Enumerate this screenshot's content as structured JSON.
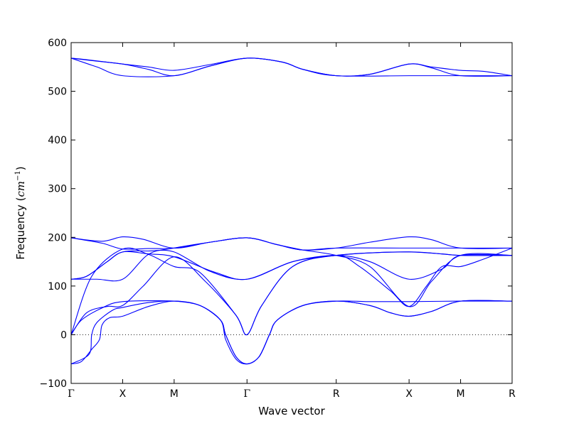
{
  "chart_data": {
    "type": "line",
    "xlabel": "Wave vector",
    "ylabel": "Frequency",
    "ylabel_unit_base": "cm",
    "ylabel_unit_exp": "−1",
    "ylim": [
      -100,
      600
    ],
    "yticks": [
      -100,
      0,
      100,
      200,
      300,
      400,
      500,
      600
    ],
    "ytick_labels": [
      "−100",
      "0",
      "100",
      "200",
      "300",
      "400",
      "500",
      "600"
    ],
    "xlim": [
      0,
      8.5
    ],
    "xticks": [
      {
        "pos": 0,
        "label": "Γ"
      },
      {
        "pos": 1,
        "label": "X"
      },
      {
        "pos": 2,
        "label": "M"
      },
      {
        "pos": 3.41421,
        "label": "Γ"
      },
      {
        "pos": 5.14626,
        "label": "R"
      },
      {
        "pos": 6.56047,
        "label": "X"
      },
      {
        "pos": 7.56047,
        "label": "M"
      },
      {
        "pos": 8.56047,
        "label": "R"
      }
    ],
    "zero_line": true,
    "grid": false,
    "line_color": "#0000ff",
    "zero_line_color": "#000000",
    "series": [
      {
        "points": [
          [
            0,
            568
          ],
          [
            0.3,
            565
          ],
          [
            1,
            556
          ],
          [
            1.5,
            550
          ],
          [
            2,
            543
          ],
          [
            2.7,
            555
          ],
          [
            3.41421,
            568
          ],
          [
            4.1,
            560
          ],
          [
            4.5,
            545
          ],
          [
            5.14626,
            532
          ],
          [
            5.8,
            535
          ],
          [
            6.56047,
            556
          ],
          [
            7.0,
            550
          ],
          [
            7.56047,
            543
          ],
          [
            8.0,
            541
          ],
          [
            8.56047,
            532
          ]
        ]
      },
      {
        "points": [
          [
            0,
            568
          ],
          [
            0.4,
            563
          ],
          [
            1,
            556
          ],
          [
            1.5,
            545
          ],
          [
            2,
            532
          ],
          [
            2.7,
            552
          ],
          [
            3.41421,
            568
          ],
          [
            4.1,
            560
          ],
          [
            4.5,
            545
          ],
          [
            5.14626,
            532
          ],
          [
            5.8,
            535
          ],
          [
            6.56047,
            556
          ],
          [
            7.0,
            548
          ],
          [
            7.56047,
            532
          ],
          [
            8.56047,
            532
          ]
        ]
      },
      {
        "points": [
          [
            0,
            568
          ],
          [
            0.5,
            550
          ],
          [
            1,
            532
          ],
          [
            2,
            532
          ],
          [
            2.7,
            552
          ],
          [
            3.41421,
            568
          ],
          [
            4.1,
            560
          ],
          [
            4.5,
            545
          ],
          [
            5.14626,
            532
          ],
          [
            6.56047,
            532
          ],
          [
            7.56047,
            532
          ],
          [
            8.56047,
            532
          ]
        ]
      },
      {
        "points": [
          [
            0,
            199
          ],
          [
            0.6,
            192
          ],
          [
            1,
            201
          ],
          [
            1.4,
            196
          ],
          [
            2,
            178
          ],
          [
            2.7,
            190
          ],
          [
            3.41421,
            199
          ],
          [
            4,
            185
          ],
          [
            4.5,
            174
          ],
          [
            5.14626,
            178
          ],
          [
            5.8,
            190
          ],
          [
            6.56047,
            201
          ],
          [
            7.0,
            195
          ],
          [
            7.56047,
            178
          ],
          [
            8.56047,
            178
          ]
        ]
      },
      {
        "points": [
          [
            0,
            199
          ],
          [
            0.6,
            188
          ],
          [
            1,
            176
          ],
          [
            1.5,
            177
          ],
          [
            2,
            178
          ],
          [
            2.7,
            190
          ],
          [
            3.41421,
            199
          ],
          [
            4,
            185
          ],
          [
            4.5,
            174
          ],
          [
            5.14626,
            178
          ],
          [
            6.56047,
            178
          ],
          [
            7.56047,
            178
          ],
          [
            8.56047,
            178
          ]
        ]
      },
      {
        "points": [
          [
            0,
            114
          ],
          [
            0.3,
            120
          ],
          [
            0.7,
            150
          ],
          [
            1,
            170
          ],
          [
            1.5,
            166
          ],
          [
            2,
            160
          ],
          [
            2.8,
            128
          ],
          [
            3.41421,
            114
          ],
          [
            4.3,
            150
          ],
          [
            5.14626,
            163
          ],
          [
            5.8,
            168
          ],
          [
            6.56047,
            170
          ],
          [
            7.2,
            166
          ],
          [
            7.56047,
            163
          ],
          [
            8.56047,
            163
          ]
        ]
      },
      {
        "points": [
          [
            0,
            114
          ],
          [
            0.3,
            120
          ],
          [
            0.7,
            150
          ],
          [
            1,
            170
          ],
          [
            1.5,
            172
          ],
          [
            2,
            170
          ],
          [
            2.7,
            130
          ],
          [
            3.41421,
            114
          ],
          [
            4.3,
            150
          ],
          [
            5.14626,
            163
          ],
          [
            5.8,
            150
          ],
          [
            6.56047,
            114
          ],
          [
            7.2,
            135
          ],
          [
            7.56047,
            163
          ],
          [
            8.56047,
            163
          ]
        ]
      },
      {
        "points": [
          [
            0,
            114
          ],
          [
            0.5,
            114
          ],
          [
            1,
            114
          ],
          [
            1.5,
            165
          ],
          [
            2,
            178
          ],
          [
            2.7,
            190
          ],
          [
            3.41421,
            199
          ],
          [
            4,
            185
          ],
          [
            4.5,
            174
          ],
          [
            5.14626,
            163
          ],
          [
            5.8,
            140
          ],
          [
            6.56047,
            58
          ],
          [
            7.0,
            110
          ],
          [
            7.56047,
            163
          ],
          [
            8.56047,
            163
          ]
        ]
      },
      {
        "points": [
          [
            0,
            0
          ],
          [
            0.4,
            120
          ],
          [
            1,
            176
          ],
          [
            1.5,
            165
          ],
          [
            2,
            140
          ],
          [
            2.5,
            128
          ],
          [
            3.2,
            40
          ],
          [
            3.41421,
            0
          ],
          [
            3.7,
            60
          ],
          [
            4.3,
            140
          ],
          [
            5.14626,
            163
          ],
          [
            5.6,
            140
          ],
          [
            6.2,
            90
          ],
          [
            6.56047,
            58
          ],
          [
            6.9,
            100
          ],
          [
            7.2,
            140
          ],
          [
            7.56047,
            140
          ],
          [
            8.0,
            155
          ],
          [
            8.56047,
            178
          ]
        ]
      },
      {
        "points": [
          [
            0,
            0
          ],
          [
            0.3,
            45
          ],
          [
            0.7,
            58
          ],
          [
            1,
            60
          ],
          [
            1.4,
            100
          ],
          [
            2,
            160
          ],
          [
            2.6,
            110
          ],
          [
            3.2,
            40
          ],
          [
            3.41421,
            0
          ],
          [
            3.7,
            60
          ],
          [
            4.3,
            140
          ],
          [
            5.14626,
            163
          ],
          [
            6.56047,
            170
          ],
          [
            7.56047,
            163
          ],
          [
            8.56047,
            163
          ]
        ]
      },
      {
        "points": [
          [
            0,
            0
          ],
          [
            0.2,
            30
          ],
          [
            0.6,
            55
          ],
          [
            1,
            68
          ],
          [
            2,
            69
          ],
          [
            2.5,
            60
          ],
          [
            2.9,
            30
          ],
          [
            3.0,
            0
          ],
          [
            3.2,
            -45
          ],
          [
            3.41421,
            -60
          ],
          [
            3.65,
            -45
          ],
          [
            3.85,
            0
          ],
          [
            4.0,
            30
          ],
          [
            4.5,
            60
          ],
          [
            5.14626,
            69
          ],
          [
            5.8,
            68
          ],
          [
            6.56047,
            68
          ],
          [
            7.56047,
            69
          ],
          [
            8.56047,
            69
          ]
        ]
      },
      {
        "points": [
          [
            0,
            -60
          ],
          [
            0.2,
            -55
          ],
          [
            0.4,
            -30
          ],
          [
            0.55,
            -10
          ],
          [
            0.6,
            20
          ],
          [
            0.75,
            35
          ],
          [
            1,
            38
          ],
          [
            1.5,
            58
          ],
          [
            2,
            69
          ],
          [
            2.5,
            60
          ],
          [
            2.9,
            30
          ],
          [
            3.0,
            0
          ],
          [
            3.2,
            -45
          ],
          [
            3.41421,
            -60
          ],
          [
            3.65,
            -45
          ],
          [
            3.85,
            0
          ],
          [
            4.0,
            30
          ],
          [
            4.5,
            60
          ],
          [
            5.14626,
            69
          ],
          [
            5.8,
            60
          ],
          [
            6.2,
            45
          ],
          [
            6.56047,
            38
          ],
          [
            7.0,
            48
          ],
          [
            7.56047,
            69
          ],
          [
            8.56047,
            69
          ]
        ]
      },
      {
        "points": [
          [
            0,
            -60
          ],
          [
            0.35,
            -40
          ],
          [
            0.4,
            0
          ],
          [
            0.5,
            25
          ],
          [
            0.8,
            50
          ],
          [
            1,
            56
          ],
          [
            1.5,
            66
          ],
          [
            2,
            69
          ],
          [
            2.5,
            60
          ],
          [
            2.9,
            30
          ],
          [
            3.0,
            -10
          ],
          [
            3.2,
            -50
          ],
          [
            3.41421,
            -60
          ],
          [
            3.65,
            -45
          ],
          [
            3.85,
            0
          ],
          [
            4.0,
            30
          ],
          [
            4.5,
            60
          ],
          [
            5.14626,
            69
          ],
          [
            5.8,
            60
          ],
          [
            6.2,
            45
          ],
          [
            6.56047,
            38
          ],
          [
            7.0,
            48
          ],
          [
            7.56047,
            69
          ],
          [
            8.56047,
            69
          ]
        ]
      }
    ]
  }
}
